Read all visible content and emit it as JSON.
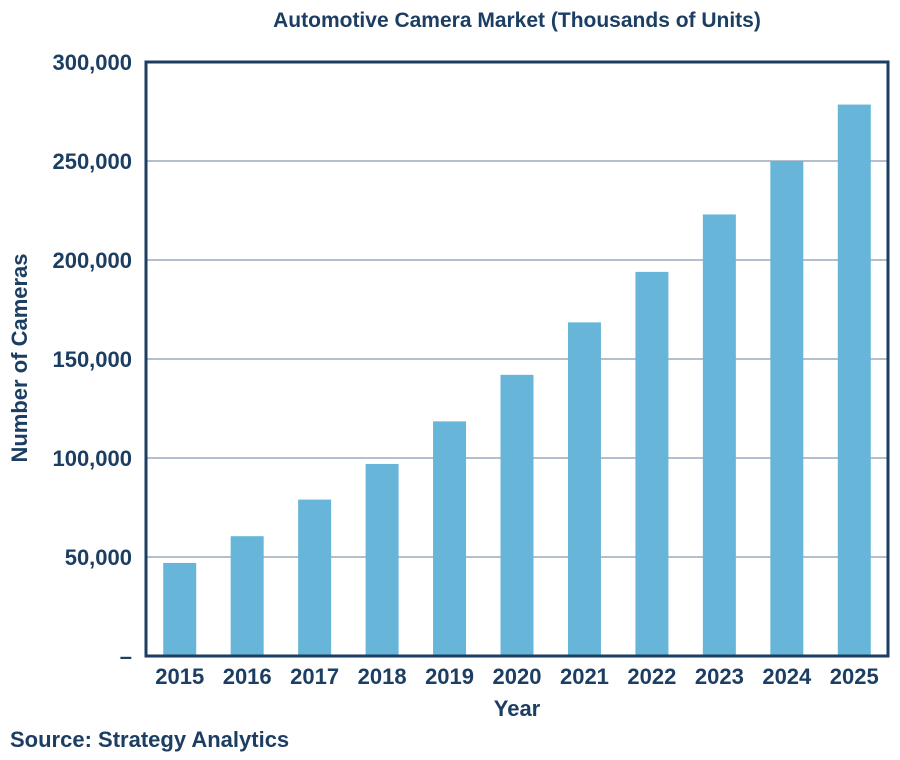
{
  "chart_data": {
    "type": "bar",
    "title": "Automotive Camera Market (Thousands of Units)",
    "xlabel": "Year",
    "ylabel": "Number of Cameras",
    "source": "Source: Strategy Analytics",
    "categories": [
      "2015",
      "2016",
      "2017",
      "2018",
      "2019",
      "2020",
      "2021",
      "2022",
      "2023",
      "2024",
      "2025"
    ],
    "values": [
      47000,
      60500,
      79000,
      97000,
      118500,
      142000,
      168500,
      194000,
      223000,
      250000,
      278500
    ],
    "ylim": [
      0,
      300000
    ],
    "yticks": [
      0,
      50000,
      100000,
      150000,
      200000,
      250000,
      300000
    ],
    "ytick_labels": [
      "–",
      "50,000",
      "100,000",
      "150,000",
      "200,000",
      "250,000",
      "300,000"
    ],
    "grid": true,
    "colors": {
      "bar": "#67b6d9",
      "axis": "#1c3e63",
      "grid": "#9aaabb",
      "text": "#1c3e63"
    }
  }
}
